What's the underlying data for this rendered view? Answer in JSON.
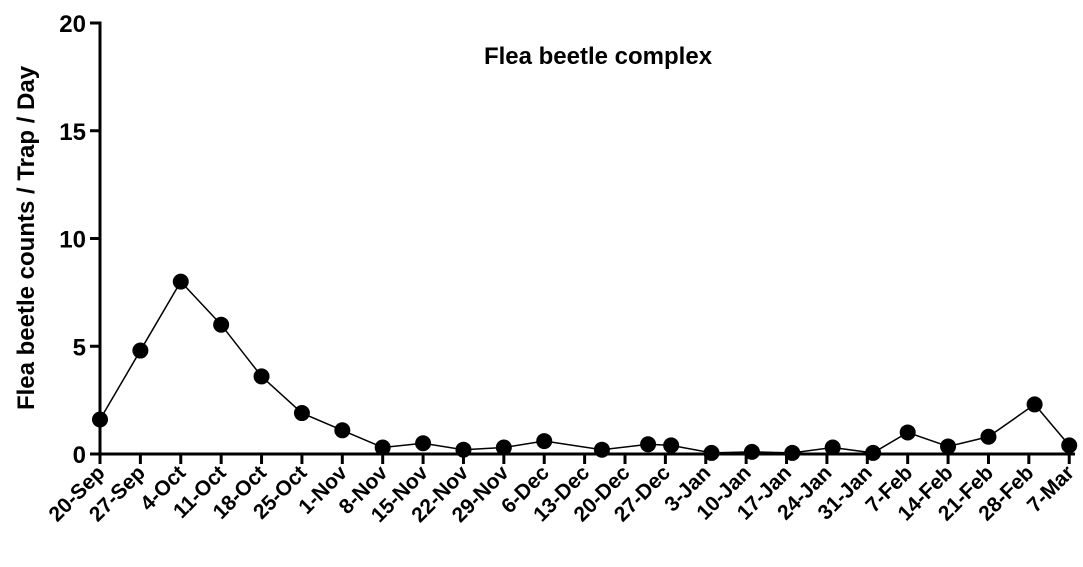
{
  "chart_data": {
    "type": "line",
    "title": "Flea beetle complex",
    "y_label": "Flea beetle counts / Trap / Day",
    "x": [
      0,
      7,
      14,
      21,
      28,
      35,
      42,
      49,
      56,
      63,
      70,
      77,
      87,
      95,
      99,
      106,
      113,
      120,
      127,
      134,
      140,
      147,
      154,
      162,
      168
    ],
    "series": [
      {
        "name": "Flea beetle complex",
        "color": "#000000",
        "values": [
          1.6,
          4.8,
          8.0,
          6.0,
          3.6,
          1.9,
          1.1,
          0.3,
          0.5,
          0.2,
          0.3,
          0.6,
          0.2,
          0.45,
          0.4,
          0.05,
          0.1,
          0.05,
          0.3,
          0.05,
          1.0,
          0.35,
          0.8,
          2.3,
          0.4
        ]
      }
    ],
    "xlim": [
      0,
      169
    ],
    "xticks": [
      {
        "value": 0,
        "label": "20-Sep"
      },
      {
        "value": 7,
        "label": "27-Sep"
      },
      {
        "value": 14,
        "label": "4-Oct"
      },
      {
        "value": 21,
        "label": "11-Oct"
      },
      {
        "value": 28,
        "label": "18-Oct"
      },
      {
        "value": 35,
        "label": "25-Oct"
      },
      {
        "value": 42,
        "label": "1-Nov"
      },
      {
        "value": 49,
        "label": "8-Nov"
      },
      {
        "value": 56,
        "label": "15-Nov"
      },
      {
        "value": 63,
        "label": "22-Nov"
      },
      {
        "value": 70,
        "label": "29-Nov"
      },
      {
        "value": 77,
        "label": "6-Dec"
      },
      {
        "value": 84,
        "label": "13-Dec"
      },
      {
        "value": 91,
        "label": "20-Dec"
      },
      {
        "value": 98,
        "label": "27-Dec"
      },
      {
        "value": 105,
        "label": "3-Jan"
      },
      {
        "value": 112,
        "label": "10-Jan"
      },
      {
        "value": 119,
        "label": "17-Jan"
      },
      {
        "value": 126,
        "label": "24-Jan"
      },
      {
        "value": 133,
        "label": "31-Jan"
      },
      {
        "value": 140,
        "label": "7-Feb"
      },
      {
        "value": 147,
        "label": "14-Feb"
      },
      {
        "value": 154,
        "label": "21-Feb"
      },
      {
        "value": 161,
        "label": "28-Feb"
      },
      {
        "value": 168,
        "label": "7-Mar"
      }
    ],
    "ylim": [
      0,
      20
    ],
    "yticks": [
      0,
      5,
      10,
      15,
      20
    ]
  }
}
